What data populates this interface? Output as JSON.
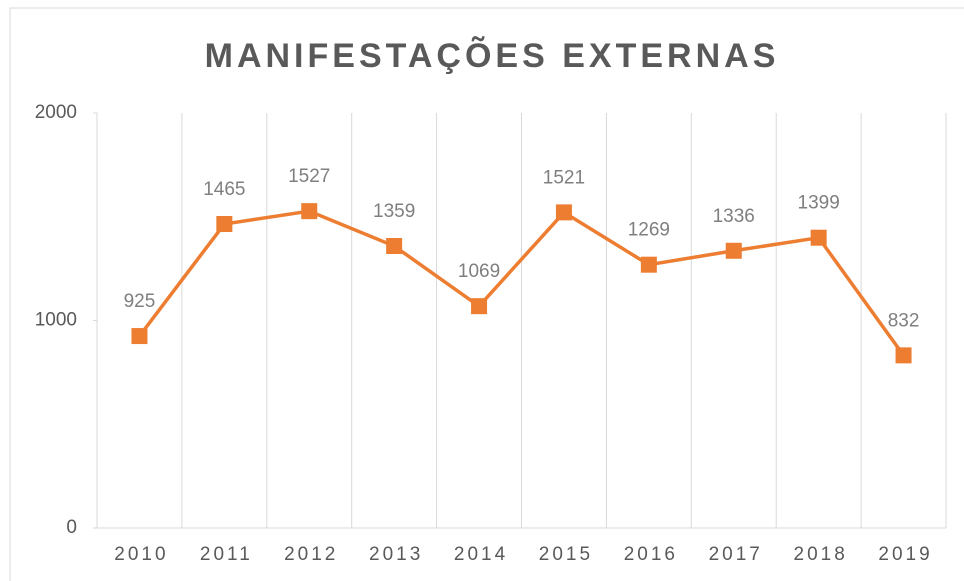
{
  "chart_data": {
    "type": "line",
    "title": "MANIFESTAÇÕES EXTERNAS",
    "categories": [
      "2010",
      "2011",
      "2012",
      "2013",
      "2014",
      "2015",
      "2016",
      "2017",
      "2018",
      "2019"
    ],
    "series": [
      {
        "name": "Manifestações",
        "color": "#ed7d31",
        "values": [
          925,
          1465,
          1527,
          1359,
          1069,
          1521,
          1269,
          1336,
          1399,
          832
        ]
      }
    ],
    "ylim": [
      0,
      2000
    ],
    "yticks": [
      0,
      1000,
      2000
    ],
    "grid": true
  }
}
